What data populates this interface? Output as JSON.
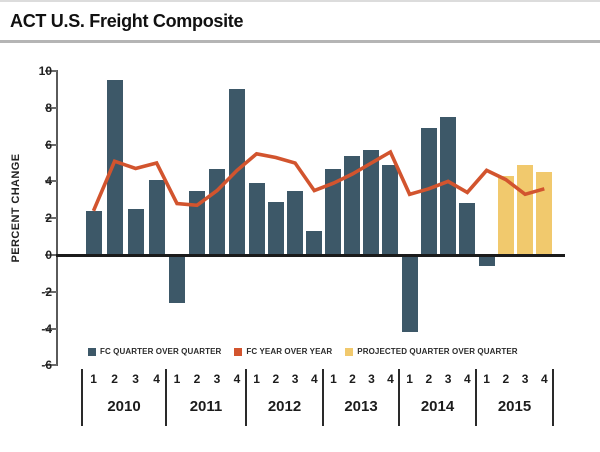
{
  "title": "ACT U.S. Freight Composite",
  "y_axis": {
    "label": "PERCENT CHANGE",
    "ticks": [
      10,
      8,
      6,
      4,
      2,
      0,
      -2,
      -4,
      -6
    ]
  },
  "legend": {
    "qoq": "FC QUARTER OVER QUARTER",
    "yoy": "FC YEAR OVER YEAR",
    "projected": "PROJECTED QUARTER OVER QUARTER"
  },
  "colors": {
    "bar": "#3d5868",
    "line": "#d2542e",
    "projected": "#f1c96d"
  },
  "chart_data": {
    "type": "bar",
    "title": "ACT U.S. Freight Composite",
    "ylabel": "PERCENT CHANGE",
    "ylim": [
      -6,
      10
    ],
    "y_tick_step": 2,
    "grid": false,
    "legend_position": "bottom-left",
    "years": [
      "2010",
      "2011",
      "2012",
      "2013",
      "2014",
      "2015"
    ],
    "quarter_labels": [
      "1",
      "2",
      "3",
      "4"
    ],
    "categories": [
      "2010 Q1",
      "2010 Q2",
      "2010 Q3",
      "2010 Q4",
      "2011 Q1",
      "2011 Q2",
      "2011 Q3",
      "2011 Q4",
      "2012 Q1",
      "2012 Q2",
      "2012 Q3",
      "2012 Q4",
      "2013 Q1",
      "2013 Q2",
      "2013 Q3",
      "2013 Q4",
      "2014 Q1",
      "2014 Q2",
      "2014 Q3",
      "2014 Q4",
      "2015 Q1",
      "2015 Q2",
      "2015 Q3",
      "2015 Q4"
    ],
    "series": [
      {
        "name": "FC QUARTER OVER QUARTER",
        "type": "bar",
        "color": "#3d5868",
        "values": [
          2.4,
          9.5,
          2.5,
          4.1,
          -2.6,
          3.5,
          4.7,
          9.0,
          3.9,
          2.9,
          3.5,
          1.3,
          4.7,
          5.4,
          5.7,
          4.9,
          -4.2,
          6.9,
          7.5,
          2.8,
          -0.6,
          null,
          null,
          null
        ]
      },
      {
        "name": "PROJECTED QUARTER OVER QUARTER",
        "type": "bar",
        "color": "#f1c96d",
        "values": [
          null,
          null,
          null,
          null,
          null,
          null,
          null,
          null,
          null,
          null,
          null,
          null,
          null,
          null,
          null,
          null,
          null,
          null,
          null,
          null,
          null,
          4.3,
          4.9,
          4.5
        ]
      },
      {
        "name": "FC YEAR OVER YEAR",
        "type": "line",
        "color": "#d2542e",
        "values": [
          2.4,
          5.1,
          4.7,
          5.0,
          2.8,
          2.7,
          3.5,
          4.6,
          5.5,
          5.3,
          5.0,
          3.5,
          3.9,
          4.4,
          5.0,
          5.6,
          3.3,
          3.6,
          4.0,
          3.4,
          4.6,
          4.1,
          3.3,
          3.6
        ]
      }
    ]
  }
}
